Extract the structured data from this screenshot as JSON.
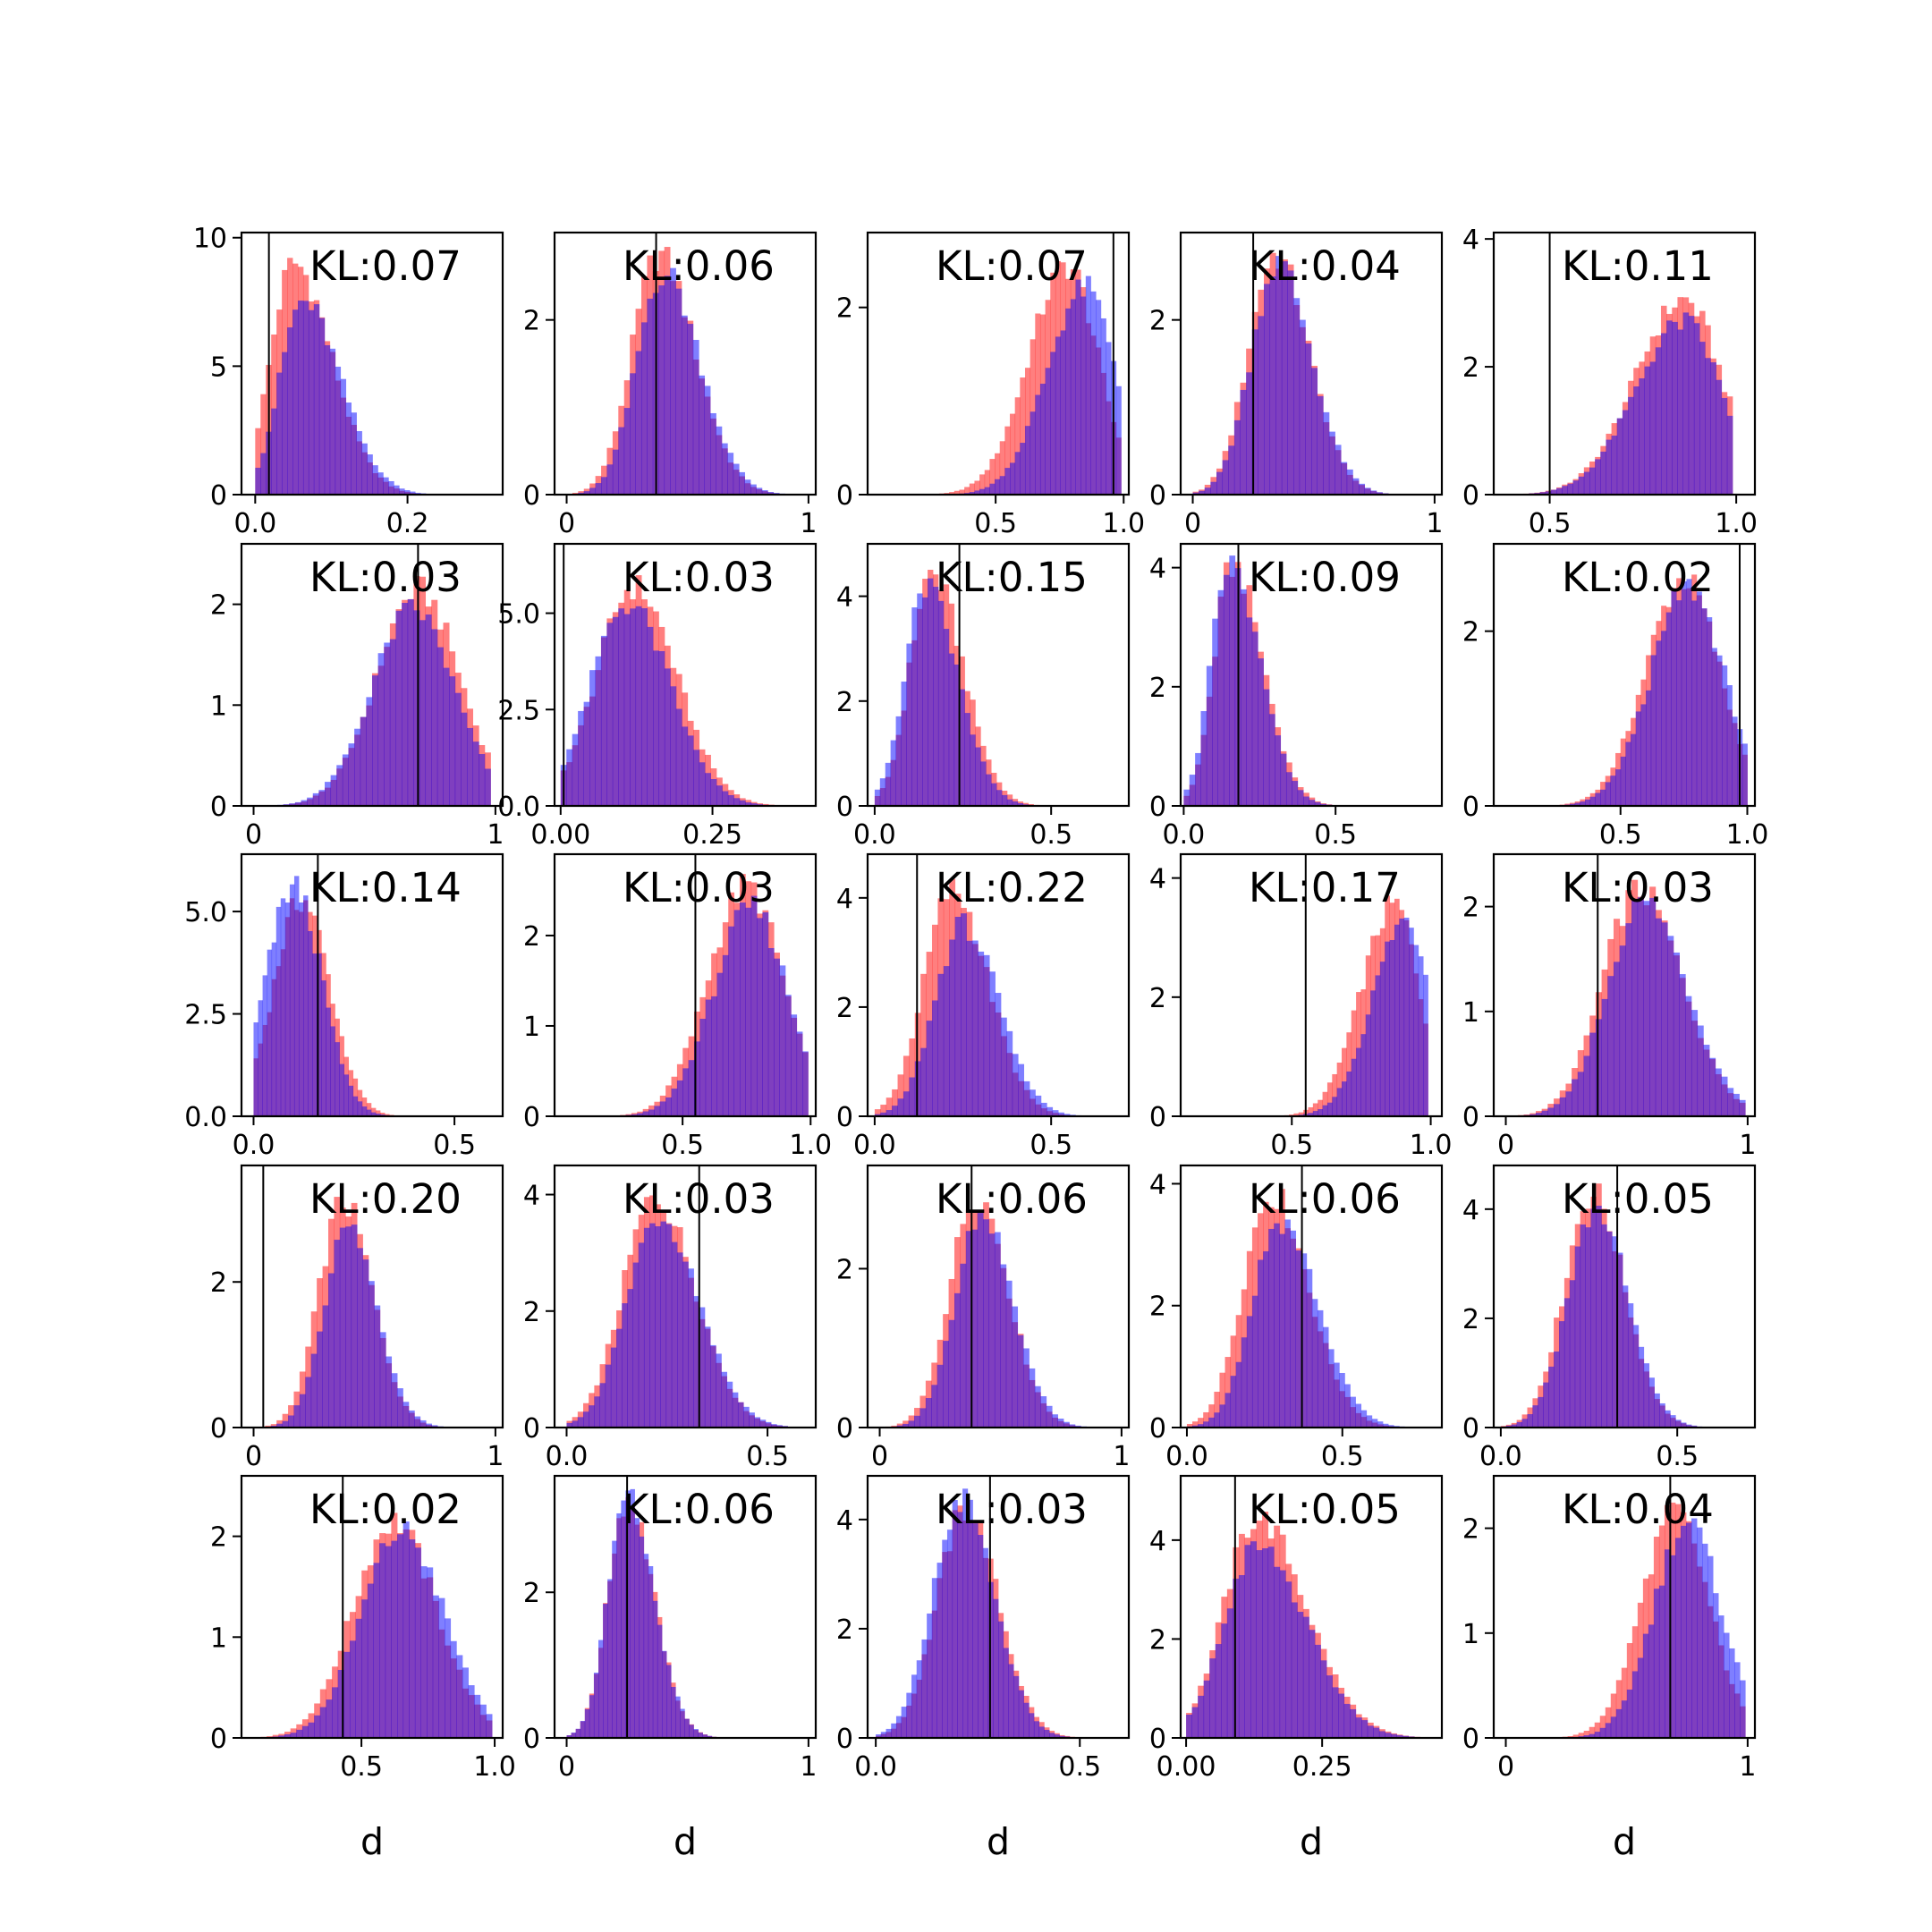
{
  "colors": {
    "red": "#ff0000",
    "blue": "#0000ff",
    "overlap": "#8040c0",
    "axis": "#000000"
  },
  "chart_data": [
    {
      "type": "bar",
      "title": "",
      "kl": "KL:0.07",
      "xmin": -0.018,
      "xmax": 0.325,
      "ymax": 10.2,
      "ref": 0.018,
      "xticks": [
        0.0,
        0.2
      ],
      "xtick_labels": [
        "0.0",
        "0.2"
      ],
      "yticks": [
        0,
        5,
        10
      ],
      "ytick_labels": [
        "0",
        "5",
        "10"
      ],
      "xlabel": "",
      "dist": {
        "lo": 0.0,
        "hi": 0.28,
        "peak": 0.05,
        "sd_l": 0.03,
        "sd_r": 0.05,
        "red_amp": 9.0,
        "blue_amp": 7.5,
        "blue_shift": 0.012
      }
    },
    {
      "type": "bar",
      "title": "",
      "kl": "KL:0.06",
      "xmin": -0.05,
      "xmax": 1.03,
      "ymax": 3.0,
      "ref": 0.37,
      "xticks": [
        0,
        1
      ],
      "xtick_labels": [
        "0",
        "1"
      ],
      "yticks": [
        0,
        2
      ],
      "ytick_labels": [
        "0",
        "2"
      ],
      "xlabel": "",
      "dist": {
        "lo": 0.0,
        "hi": 0.95,
        "peak": 0.38,
        "sd_l": 0.11,
        "sd_r": 0.15,
        "red_amp": 2.75,
        "blue_amp": 2.55,
        "blue_shift": 0.02
      }
    },
    {
      "type": "bar",
      "title": "",
      "kl": "KL:0.07",
      "xmin": 0.0,
      "xmax": 1.02,
      "ymax": 2.8,
      "ref": 0.96,
      "xticks": [
        0.5,
        1.0
      ],
      "xtick_labels": [
        "0.5",
        "1.0"
      ],
      "yticks": [
        0,
        2
      ],
      "ytick_labels": [
        "0",
        "2"
      ],
      "xlabel": "",
      "dist": {
        "lo": 0.2,
        "hi": 0.99,
        "peak": 0.78,
        "sd_l": 0.15,
        "sd_r": 0.12,
        "red_amp": 2.45,
        "blue_amp": 2.2,
        "blue_shift": 0.07
      }
    },
    {
      "type": "bar",
      "title": "",
      "kl": "KL:0.04",
      "xmin": -0.05,
      "xmax": 1.03,
      "ymax": 3.0,
      "ref": 0.25,
      "xticks": [
        0,
        1
      ],
      "xtick_labels": [
        "0",
        "1"
      ],
      "yticks": [
        0,
        2
      ],
      "ytick_labels": [
        "0",
        "2"
      ],
      "xlabel": "",
      "dist": {
        "lo": 0.0,
        "hi": 0.98,
        "peak": 0.34,
        "sd_l": 0.11,
        "sd_r": 0.14,
        "red_amp": 2.75,
        "blue_amp": 2.65,
        "blue_shift": 0.01
      }
    },
    {
      "type": "bar",
      "title": "",
      "kl": "KL:0.11",
      "xmin": 0.35,
      "xmax": 1.05,
      "ymax": 4.1,
      "ref": 0.5,
      "xticks": [
        0.5,
        1.0
      ],
      "xtick_labels": [
        "0.5",
        "1.0"
      ],
      "yticks": [
        0,
        2,
        4
      ],
      "ytick_labels": [
        "0",
        "2",
        "4"
      ],
      "xlabel": "",
      "dist": {
        "lo": 0.4,
        "hi": 0.99,
        "peak": 0.86,
        "sd_l": 0.13,
        "sd_r": 0.1,
        "red_amp": 3.05,
        "blue_amp": 2.7,
        "blue_shift": 0.0
      }
    },
    {
      "type": "bar",
      "title": "",
      "kl": "KL:0.03",
      "xmin": -0.05,
      "xmax": 1.03,
      "ymax": 2.6,
      "ref": 0.68,
      "xticks": [
        0,
        1
      ],
      "xtick_labels": [
        "0",
        "1"
      ],
      "yticks": [
        0,
        1,
        2
      ],
      "ytick_labels": [
        "0",
        "1",
        "2"
      ],
      "xlabel": "",
      "dist": {
        "lo": 0.0,
        "hi": 0.98,
        "peak": 0.68,
        "sd_l": 0.17,
        "sd_r": 0.17,
        "red_amp": 2.15,
        "blue_amp": 1.95,
        "blue_shift": -0.02
      }
    },
    {
      "type": "bar",
      "title": "",
      "kl": "KL:0.03",
      "xmin": -0.01,
      "xmax": 0.42,
      "ymax": 6.8,
      "ref": 0.005,
      "xticks": [
        0.0,
        0.25
      ],
      "xtick_labels": [
        "0.00",
        "0.25"
      ],
      "yticks": [
        0,
        2.5,
        5.0
      ],
      "ytick_labels": [
        "0.0",
        "2.5",
        "5.0"
      ],
      "xlabel": "",
      "dist": {
        "lo": 0.0,
        "hi": 0.38,
        "peak": 0.12,
        "sd_l": 0.06,
        "sd_r": 0.07,
        "red_amp": 5.7,
        "blue_amp": 5.25,
        "blue_shift": -0.01
      }
    },
    {
      "type": "bar",
      "title": "",
      "kl": "KL:0.15",
      "xmin": -0.02,
      "xmax": 0.72,
      "ymax": 5.0,
      "ref": 0.24,
      "xticks": [
        0.0,
        0.5
      ],
      "xtick_labels": [
        "0.0",
        "0.5"
      ],
      "yticks": [
        0,
        2,
        4
      ],
      "ytick_labels": [
        "0",
        "2",
        "4"
      ],
      "xlabel": "",
      "dist": {
        "lo": 0.0,
        "hi": 0.6,
        "peak": 0.16,
        "sd_l": 0.06,
        "sd_r": 0.09,
        "red_amp": 4.45,
        "blue_amp": 4.15,
        "blue_shift": -0.015
      }
    },
    {
      "type": "bar",
      "title": "",
      "kl": "KL:0.09",
      "xmin": -0.01,
      "xmax": 0.85,
      "ymax": 4.4,
      "ref": 0.18,
      "xticks": [
        0.0,
        0.5
      ],
      "xtick_labels": [
        "0.0",
        "0.5"
      ],
      "yticks": [
        0,
        2,
        4
      ],
      "ytick_labels": [
        "0",
        "2",
        "4"
      ],
      "xlabel": "",
      "dist": {
        "lo": 0.0,
        "hi": 0.75,
        "peak": 0.16,
        "sd_l": 0.06,
        "sd_r": 0.1,
        "red_amp": 4.05,
        "blue_amp": 4.05,
        "blue_shift": -0.01
      }
    },
    {
      "type": "bar",
      "title": "",
      "kl": "KL:0.02",
      "xmin": 0.0,
      "xmax": 1.03,
      "ymax": 3.0,
      "ref": 0.97,
      "xticks": [
        0.5,
        1.0
      ],
      "xtick_labels": [
        "0.5",
        "1.0"
      ],
      "yticks": [
        0,
        2
      ],
      "ytick_labels": [
        "0",
        "2"
      ],
      "xlabel": "",
      "dist": {
        "lo": 0.2,
        "hi": 1.0,
        "peak": 0.75,
        "sd_l": 0.15,
        "sd_r": 0.14,
        "red_amp": 2.6,
        "blue_amp": 2.5,
        "blue_shift": 0.02
      }
    },
    {
      "type": "bar",
      "title": "",
      "kl": "KL:0.14",
      "xmin": -0.03,
      "xmax": 0.62,
      "ymax": 6.4,
      "ref": 0.16,
      "xticks": [
        0.0,
        0.5
      ],
      "xtick_labels": [
        "0.0",
        "0.5"
      ],
      "yticks": [
        0,
        2.5,
        5.0
      ],
      "ytick_labels": [
        "0.0",
        "2.5",
        "5.0"
      ],
      "xlabel": "",
      "dist": {
        "lo": 0.0,
        "hi": 0.45,
        "peak": 0.12,
        "sd_l": 0.07,
        "sd_r": 0.07,
        "red_amp": 5.3,
        "blue_amp": 5.6,
        "blue_shift": -0.02
      }
    },
    {
      "type": "bar",
      "title": "",
      "kl": "KL:0.03",
      "xmin": 0.0,
      "xmax": 1.02,
      "ymax": 2.9,
      "ref": 0.55,
      "xticks": [
        0.5,
        1.0
      ],
      "xtick_labels": [
        "0.5",
        "1.0"
      ],
      "yticks": [
        0,
        1,
        2
      ],
      "ytick_labels": [
        "0",
        "1",
        "2"
      ],
      "xlabel": "",
      "dist": {
        "lo": 0.1,
        "hi": 0.99,
        "peak": 0.75,
        "sd_l": 0.15,
        "sd_r": 0.14,
        "red_amp": 2.55,
        "blue_amp": 2.3,
        "blue_shift": 0.02
      }
    },
    {
      "type": "bar",
      "title": "",
      "kl": "KL:0.22",
      "xmin": -0.02,
      "xmax": 0.72,
      "ymax": 4.8,
      "ref": 0.12,
      "xticks": [
        0.0,
        0.5
      ],
      "xtick_labels": [
        "0.0",
        "0.5"
      ],
      "yticks": [
        0,
        2,
        4
      ],
      "ytick_labels": [
        "0",
        "2",
        "4"
      ],
      "xlabel": "",
      "dist": {
        "lo": 0.0,
        "hi": 0.65,
        "peak": 0.22,
        "sd_l": 0.08,
        "sd_r": 0.1,
        "red_amp": 4.15,
        "blue_amp": 3.5,
        "blue_shift": 0.03
      }
    },
    {
      "type": "bar",
      "title": "",
      "kl": "KL:0.17",
      "xmin": 0.1,
      "xmax": 1.04,
      "ymax": 4.4,
      "ref": 0.55,
      "xticks": [
        0.5,
        1.0
      ],
      "xtick_labels": [
        "0.5",
        "1.0"
      ],
      "yticks": [
        0,
        2,
        4
      ],
      "ytick_labels": [
        "0",
        "2",
        "4"
      ],
      "xlabel": "",
      "dist": {
        "lo": 0.3,
        "hi": 0.99,
        "peak": 0.87,
        "sd_l": 0.12,
        "sd_r": 0.09,
        "red_amp": 3.55,
        "blue_amp": 3.3,
        "blue_shift": 0.04
      }
    },
    {
      "type": "bar",
      "title": "",
      "kl": "KL:0.03",
      "xmin": -0.05,
      "xmax": 1.03,
      "ymax": 2.5,
      "ref": 0.38,
      "xticks": [
        0,
        1
      ],
      "xtick_labels": [
        "0",
        "1"
      ],
      "yticks": [
        0,
        1,
        2
      ],
      "ytick_labels": [
        "0",
        "1",
        "2"
      ],
      "xlabel": "",
      "dist": {
        "lo": 0.0,
        "hi": 0.99,
        "peak": 0.55,
        "sd_l": 0.15,
        "sd_r": 0.18,
        "red_amp": 2.15,
        "blue_amp": 2.05,
        "blue_shift": 0.02
      }
    },
    {
      "type": "bar",
      "title": "",
      "kl": "KL:0.20",
      "xmin": -0.05,
      "xmax": 1.03,
      "ymax": 3.6,
      "ref": 0.04,
      "xticks": [
        0,
        1
      ],
      "xtick_labels": [
        "0",
        "1"
      ],
      "yticks": [
        0,
        2
      ],
      "ytick_labels": [
        "0",
        "2"
      ],
      "xlabel": "",
      "dist": {
        "lo": 0.0,
        "hi": 0.95,
        "peak": 0.37,
        "sd_l": 0.1,
        "sd_r": 0.12,
        "red_amp": 3.1,
        "blue_amp": 2.75,
        "blue_shift": 0.02
      }
    },
    {
      "type": "bar",
      "title": "",
      "kl": "KL:0.03",
      "xmin": -0.03,
      "xmax": 0.62,
      "ymax": 4.5,
      "ref": 0.33,
      "xticks": [
        0.0,
        0.5
      ],
      "xtick_labels": [
        "0.0",
        "0.5"
      ],
      "yticks": [
        0,
        2,
        4
      ],
      "ytick_labels": [
        "0",
        "2",
        "4"
      ],
      "xlabel": "",
      "dist": {
        "lo": 0.0,
        "hi": 0.55,
        "peak": 0.22,
        "sd_l": 0.08,
        "sd_r": 0.1,
        "red_amp": 3.95,
        "blue_amp": 3.65,
        "blue_shift": 0.01
      }
    },
    {
      "type": "bar",
      "title": "",
      "kl": "KL:0.06",
      "xmin": -0.05,
      "xmax": 1.03,
      "ymax": 3.3,
      "ref": 0.38,
      "xticks": [
        0,
        1
      ],
      "xtick_labels": [
        "0",
        "1"
      ],
      "yticks": [
        0,
        2
      ],
      "ytick_labels": [
        "0",
        "2"
      ],
      "xlabel": "",
      "dist": {
        "lo": 0.0,
        "hi": 0.95,
        "peak": 0.4,
        "sd_l": 0.11,
        "sd_r": 0.13,
        "red_amp": 2.95,
        "blue_amp": 2.7,
        "blue_shift": 0.02
      }
    },
    {
      "type": "bar",
      "title": "",
      "kl": "KL:0.06",
      "xmin": -0.02,
      "xmax": 0.82,
      "ymax": 4.3,
      "ref": 0.37,
      "xticks": [
        0.0,
        0.5
      ],
      "xtick_labels": [
        "0.0",
        "0.5"
      ],
      "yticks": [
        0,
        2,
        4
      ],
      "ytick_labels": [
        "0",
        "2",
        "4"
      ],
      "xlabel": "",
      "dist": {
        "lo": 0.0,
        "hi": 0.7,
        "peak": 0.27,
        "sd_l": 0.09,
        "sd_r": 0.12,
        "red_amp": 3.85,
        "blue_amp": 3.4,
        "blue_shift": 0.03
      }
    },
    {
      "type": "bar",
      "title": "",
      "kl": "KL:0.05",
      "xmin": -0.02,
      "xmax": 0.72,
      "ymax": 4.8,
      "ref": 0.33,
      "xticks": [
        0.0,
        0.5
      ],
      "xtick_labels": [
        "0.0",
        "0.5"
      ],
      "yticks": [
        0,
        2,
        4
      ],
      "ytick_labels": [
        "0",
        "2",
        "4"
      ],
      "xlabel": "",
      "dist": {
        "lo": 0.0,
        "hi": 0.6,
        "peak": 0.26,
        "sd_l": 0.08,
        "sd_r": 0.09,
        "red_amp": 4.3,
        "blue_amp": 4.0,
        "blue_shift": 0.01
      }
    },
    {
      "type": "bar",
      "title": "",
      "kl": "KL:0.02",
      "xmin": 0.05,
      "xmax": 1.03,
      "ymax": 2.6,
      "ref": 0.43,
      "xticks": [
        0.5,
        1.0
      ],
      "xtick_labels": [
        "0.5",
        "1.0"
      ],
      "yticks": [
        0,
        1,
        2
      ],
      "ytick_labels": [
        "0",
        "1",
        "2"
      ],
      "xlabel": "d",
      "dist": {
        "lo": 0.1,
        "hi": 0.99,
        "peak": 0.62,
        "sd_l": 0.15,
        "sd_r": 0.16,
        "red_amp": 2.15,
        "blue_amp": 2.05,
        "blue_shift": 0.03
      }
    },
    {
      "type": "bar",
      "title": "",
      "kl": "KL:0.06",
      "xmin": -0.05,
      "xmax": 1.03,
      "ymax": 3.6,
      "ref": 0.25,
      "xticks": [
        0,
        1
      ],
      "xtick_labels": [
        "0",
        "1"
      ],
      "yticks": [
        0,
        2
      ],
      "ytick_labels": [
        "0",
        "2"
      ],
      "xlabel": "d",
      "dist": {
        "lo": 0.0,
        "hi": 0.75,
        "peak": 0.25,
        "sd_l": 0.08,
        "sd_r": 0.11,
        "red_amp": 3.3,
        "blue_amp": 3.3,
        "blue_shift": 0.0
      }
    },
    {
      "type": "bar",
      "title": "",
      "kl": "KL:0.03",
      "xmin": -0.02,
      "xmax": 0.62,
      "ymax": 4.8,
      "ref": 0.28,
      "xticks": [
        0.0,
        0.5
      ],
      "xtick_labels": [
        "0.0",
        "0.5"
      ],
      "yticks": [
        0,
        2,
        4
      ],
      "ytick_labels": [
        "0",
        "2",
        "4"
      ],
      "xlabel": "d",
      "dist": {
        "lo": 0.0,
        "hi": 0.5,
        "peak": 0.22,
        "sd_l": 0.07,
        "sd_r": 0.08,
        "red_amp": 4.2,
        "blue_amp": 4.35,
        "blue_shift": -0.01
      }
    },
    {
      "type": "bar",
      "title": "",
      "kl": "KL:0.05",
      "xmin": -0.01,
      "xmax": 0.47,
      "ymax": 5.3,
      "ref": 0.09,
      "xticks": [
        0.0,
        0.25
      ],
      "xtick_labels": [
        "0.00",
        "0.25"
      ],
      "yticks": [
        0,
        2,
        4
      ],
      "ytick_labels": [
        "0",
        "2",
        "4"
      ],
      "xlabel": "d",
      "dist": {
        "lo": 0.0,
        "hi": 0.43,
        "peak": 0.13,
        "sd_l": 0.06,
        "sd_r": 0.09,
        "red_amp": 4.45,
        "blue_amp": 3.85,
        "blue_shift": 0.0
      }
    },
    {
      "type": "bar",
      "title": "",
      "kl": "KL:0.04",
      "xmin": -0.05,
      "xmax": 1.03,
      "ymax": 2.5,
      "ref": 0.68,
      "xticks": [
        0,
        1
      ],
      "xtick_labels": [
        "0",
        "1"
      ],
      "yticks": [
        0,
        1,
        2
      ],
      "ytick_labels": [
        "0",
        "1",
        "2"
      ],
      "xlabel": "d",
      "dist": {
        "lo": 0.1,
        "hi": 0.99,
        "peak": 0.7,
        "sd_l": 0.14,
        "sd_r": 0.14,
        "red_amp": 2.15,
        "blue_amp": 2.05,
        "blue_shift": 0.05
      }
    }
  ]
}
